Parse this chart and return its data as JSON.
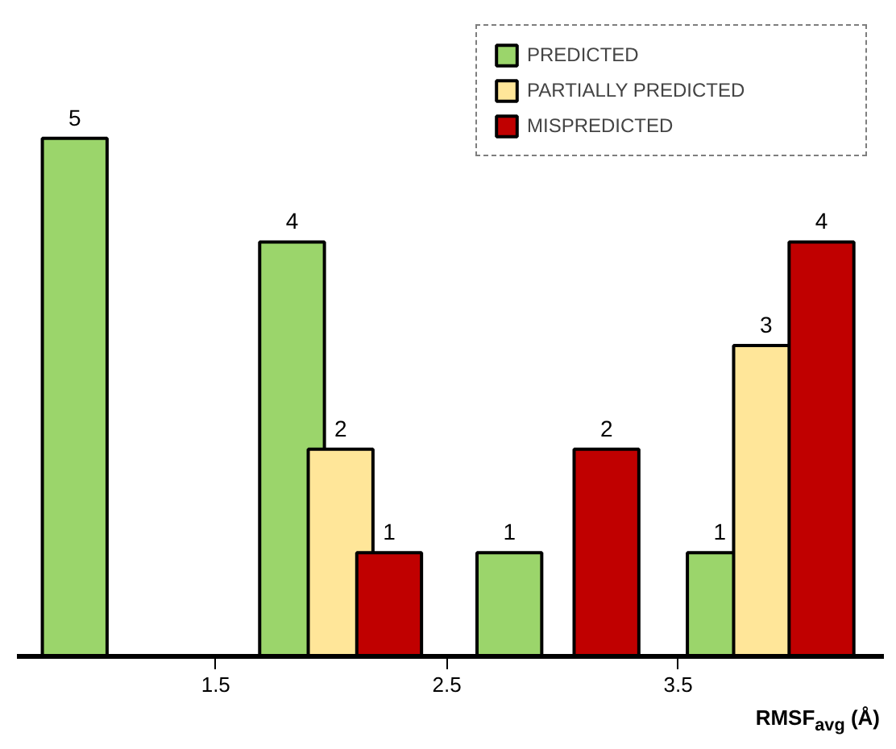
{
  "chart_data": {
    "type": "bar",
    "xlabel": "RMSF$_{avg}$ (Å)",
    "xlim": [
      0.64,
      4.39
    ],
    "xticks": [
      1.5,
      2.5,
      3.5
    ],
    "tick_labels": "x",
    "grid": false,
    "legend": "top right",
    "data_labels": true,
    "series": [
      {
        "name": "PREDICTED",
        "color": "#9bd56b",
        "x": [
          0.89,
          1.83,
          2.77,
          3.68
        ],
        "values": [
          5,
          4,
          1,
          1
        ]
      },
      {
        "name": "PARTIALLY PREDICTED",
        "color": "#ffe699",
        "x": [
          2.04,
          3.88
        ],
        "values": [
          2,
          3
        ]
      },
      {
        "name": "MISPREDICTED",
        "color": "#c00000",
        "x": [
          2.25,
          3.19,
          4.12
        ],
        "values": [
          1,
          2,
          4
        ]
      }
    ]
  }
}
